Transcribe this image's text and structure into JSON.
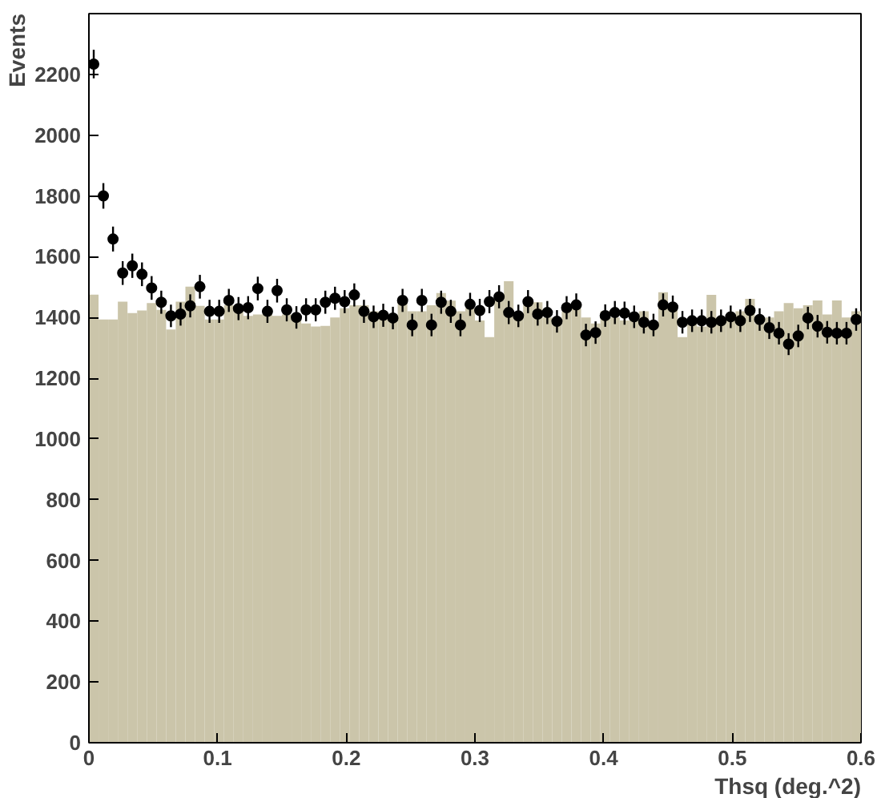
{
  "chart_data": {
    "type": "histogram",
    "xlabel": "Thsq (deg.^2)",
    "ylabel": "Events",
    "xlim": [
      0,
      0.6
    ],
    "ylim": [
      0,
      2400
    ],
    "xticks": [
      0,
      0.1,
      0.2,
      0.3,
      0.4,
      0.5,
      0.6
    ],
    "yticks": [
      0,
      200,
      400,
      600,
      800,
      1000,
      1200,
      1400,
      1600,
      1800,
      2000,
      2200
    ],
    "grid": false,
    "marker": "circle",
    "bins": [
      0,
      0.0075,
      0.015,
      0.0225,
      0.03,
      0.0375,
      0.045,
      0.0525,
      0.06,
      0.0675,
      0.075,
      0.0825,
      0.09,
      0.0975,
      0.105,
      0.1125,
      0.12,
      0.1275,
      0.135,
      0.1425,
      0.15,
      0.1575,
      0.165,
      0.1725,
      0.18,
      0.1875,
      0.195,
      0.2025,
      0.21,
      0.2175,
      0.225,
      0.2325,
      0.24,
      0.2475,
      0.255,
      0.2625,
      0.27,
      0.2775,
      0.285,
      0.2925,
      0.3,
      0.3075,
      0.315,
      0.3225,
      0.33,
      0.3375,
      0.345,
      0.3525,
      0.36,
      0.3675,
      0.375,
      0.3825,
      0.39,
      0.3975,
      0.405,
      0.4125,
      0.42,
      0.4275,
      0.435,
      0.4425,
      0.45,
      0.4575,
      0.465,
      0.4725,
      0.48,
      0.4875,
      0.495,
      0.5025,
      0.51,
      0.5175,
      0.525,
      0.5325,
      0.54,
      0.5475,
      0.555,
      0.5625,
      0.57,
      0.5775,
      0.585,
      0.5925,
      0.6
    ],
    "series": [
      {
        "type": "histogram",
        "color": "#cbc5aa",
        "values": [
          1475,
          1393,
          1393,
          1452,
          1414,
          1423,
          1447,
          1425,
          1360,
          1452,
          1501,
          1438,
          1393,
          1393,
          1440,
          1440,
          1405,
          1410,
          1420,
          1405,
          1410,
          1400,
          1380,
          1370,
          1372,
          1400,
          1430,
          1440,
          1440,
          1420,
          1405,
          1400,
          1460,
          1420,
          1420,
          1440,
          1480,
          1455,
          1420,
          1430,
          1390,
          1335,
          1460,
          1519,
          1400,
          1460,
          1450,
          1400,
          1400,
          1420,
          1430,
          1400,
          1380,
          1420,
          1400,
          1390,
          1400,
          1420,
          1370,
          1483,
          1440,
          1335,
          1380,
          1370,
          1474,
          1400,
          1410,
          1420,
          1461,
          1380,
          1400,
          1420,
          1447,
          1430,
          1440,
          1456,
          1410,
          1456,
          1400,
          1420
        ]
      },
      {
        "type": "scatter",
        "color": "#000000",
        "x": [
          0.00375,
          0.01125,
          0.01875,
          0.02625,
          0.03375,
          0.04125,
          0.04875,
          0.05625,
          0.06375,
          0.07125,
          0.07875,
          0.08625,
          0.09375,
          0.10125,
          0.10875,
          0.11625,
          0.12375,
          0.13125,
          0.13875,
          0.14625,
          0.15375,
          0.16125,
          0.16875,
          0.17625,
          0.18375,
          0.19125,
          0.19875,
          0.20625,
          0.21375,
          0.22125,
          0.22875,
          0.23625,
          0.24375,
          0.25125,
          0.25875,
          0.26625,
          0.27375,
          0.28125,
          0.28875,
          0.29625,
          0.30375,
          0.31125,
          0.31875,
          0.32625,
          0.33375,
          0.34125,
          0.34875,
          0.35625,
          0.36375,
          0.37125,
          0.37875,
          0.38625,
          0.39375,
          0.40125,
          0.40875,
          0.41625,
          0.42375,
          0.43125,
          0.43875,
          0.44625,
          0.45375,
          0.46125,
          0.46875,
          0.47625,
          0.48375,
          0.49125,
          0.49875,
          0.50625,
          0.51375,
          0.52125,
          0.52875,
          0.53625,
          0.54375,
          0.55125,
          0.55875,
          0.56625,
          0.57375,
          0.58125,
          0.58875,
          0.59625
        ],
        "values": [
          2234,
          1800,
          1658,
          1546,
          1570,
          1542,
          1497,
          1450,
          1405,
          1411,
          1438,
          1501,
          1420,
          1420,
          1456,
          1429,
          1432,
          1495,
          1420,
          1488,
          1425,
          1400,
          1425,
          1425,
          1450,
          1463,
          1452,
          1474,
          1420,
          1402,
          1407,
          1398,
          1456,
          1375,
          1456,
          1375,
          1450,
          1420,
          1375,
          1443,
          1423,
          1452,
          1468,
          1416,
          1405,
          1452,
          1411,
          1416,
          1387,
          1432,
          1441,
          1342,
          1350,
          1406,
          1416,
          1414,
          1402,
          1384,
          1375,
          1441,
          1434,
          1384,
          1389,
          1389,
          1384,
          1389,
          1402,
          1389,
          1423,
          1393,
          1366,
          1348,
          1312,
          1339,
          1398,
          1371,
          1351,
          1348,
          1348,
          1393
        ],
        "errors": [
          47,
          42,
          41,
          39,
          40,
          39,
          39,
          38,
          37,
          38,
          38,
          39,
          38,
          38,
          38,
          38,
          38,
          39,
          38,
          39,
          38,
          37,
          38,
          38,
          38,
          38,
          38,
          38,
          38,
          37,
          38,
          37,
          38,
          37,
          38,
          37,
          38,
          38,
          37,
          38,
          38,
          38,
          38,
          38,
          37,
          38,
          38,
          38,
          37,
          38,
          38,
          37,
          37,
          37,
          38,
          38,
          37,
          37,
          37,
          38,
          38,
          37,
          37,
          37,
          37,
          37,
          37,
          37,
          38,
          37,
          37,
          37,
          36,
          37,
          37,
          37,
          37,
          37,
          37,
          37
        ]
      }
    ]
  }
}
